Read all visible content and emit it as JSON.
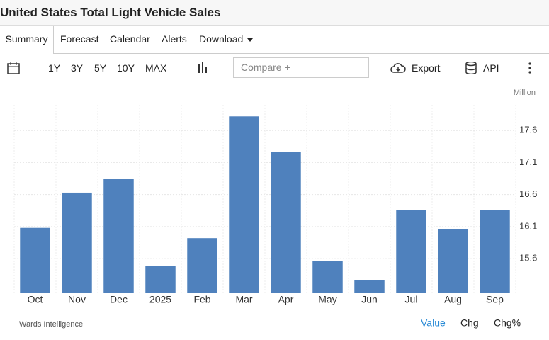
{
  "header": {
    "title": "United States Total Light Vehicle Sales"
  },
  "tabs": [
    "Summary",
    "Forecast",
    "Calendar",
    "Alerts",
    "Download"
  ],
  "toolbar": {
    "ranges": [
      "1Y",
      "3Y",
      "5Y",
      "10Y",
      "MAX"
    ],
    "compare_placeholder": "Compare +",
    "export": "Export",
    "api": "API"
  },
  "chart_data": {
    "type": "bar",
    "unit": "Million",
    "categories": [
      "Oct",
      "Nov",
      "Dec",
      "2025",
      "Feb",
      "Mar",
      "Apr",
      "May",
      "Jun",
      "Jul",
      "Aug",
      "Sep"
    ],
    "values": [
      16.08,
      16.63,
      16.84,
      15.48,
      15.92,
      17.82,
      17.27,
      15.56,
      15.27,
      16.36,
      16.06,
      16.36
    ],
    "color": "#4f81bd",
    "ylim": [
      15.06,
      18.0
    ],
    "yticks": [
      15.6,
      16.1,
      16.6,
      17.1,
      17.6
    ],
    "grid": true,
    "source": "Wards Intelligence"
  },
  "footer": {
    "views": [
      "Value",
      "Chg",
      "Chg%"
    ]
  }
}
